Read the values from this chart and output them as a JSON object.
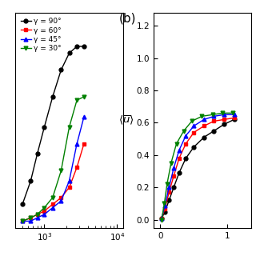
{
  "panel_b_label": "(b)",
  "legend_labels": [
    "γ = 90°",
    "γ = 60°",
    "γ = 45°",
    "γ = 30°"
  ],
  "colors": [
    "black",
    "red",
    "blue",
    "green"
  ],
  "markers": [
    "o",
    "s",
    "^",
    "v"
  ],
  "left_xlim": [
    400,
    12000
  ],
  "left_ylim": [
    0.08,
    0.72
  ],
  "left_yticks": [],
  "right_xlim": [
    -0.1,
    1.35
  ],
  "right_ylim": [
    -0.05,
    1.28
  ],
  "right_yticks": [
    0,
    0.2,
    0.4,
    0.6,
    0.8,
    1.0,
    1.2
  ],
  "right_xticks": [
    0,
    1
  ],
  "left_data": {
    "black": {
      "x": [
        500,
        650,
        800,
        1000,
        1300,
        1700,
        2200,
        2800,
        3500
      ],
      "y": [
        0.15,
        0.22,
        0.3,
        0.38,
        0.47,
        0.55,
        0.6,
        0.62,
        0.62
      ]
    },
    "red": {
      "x": [
        500,
        650,
        800,
        1000,
        1300,
        1700,
        2200,
        2800,
        3500
      ],
      "y": [
        0.1,
        0.11,
        0.12,
        0.13,
        0.15,
        0.17,
        0.2,
        0.26,
        0.33
      ]
    },
    "blue": {
      "x": [
        500,
        650,
        800,
        1000,
        1300,
        1700,
        2200,
        2800,
        3500
      ],
      "y": [
        0.1,
        0.1,
        0.11,
        0.12,
        0.14,
        0.16,
        0.22,
        0.33,
        0.41
      ]
    },
    "green": {
      "x": [
        500,
        650,
        800,
        1000,
        1300,
        1700,
        2200,
        2800,
        3500
      ],
      "y": [
        0.1,
        0.11,
        0.12,
        0.14,
        0.17,
        0.25,
        0.38,
        0.46,
        0.47
      ]
    }
  },
  "right_data": {
    "black": {
      "x": [
        0.02,
        0.07,
        0.13,
        0.2,
        0.28,
        0.38,
        0.5,
        0.65,
        0.8,
        0.95,
        1.1
      ],
      "y": [
        0.01,
        0.05,
        0.12,
        0.2,
        0.29,
        0.38,
        0.45,
        0.51,
        0.55,
        0.59,
        0.62
      ]
    },
    "red": {
      "x": [
        0.02,
        0.07,
        0.13,
        0.2,
        0.28,
        0.38,
        0.5,
        0.65,
        0.8,
        0.95,
        1.1
      ],
      "y": [
        0.01,
        0.07,
        0.17,
        0.27,
        0.38,
        0.47,
        0.54,
        0.58,
        0.61,
        0.62,
        0.63
      ]
    },
    "blue": {
      "x": [
        0.02,
        0.07,
        0.13,
        0.2,
        0.28,
        0.38,
        0.5,
        0.65,
        0.8,
        0.95,
        1.1
      ],
      "y": [
        0.01,
        0.09,
        0.2,
        0.32,
        0.43,
        0.52,
        0.58,
        0.62,
        0.64,
        0.65,
        0.65
      ]
    },
    "green": {
      "x": [
        0.02,
        0.06,
        0.1,
        0.16,
        0.24,
        0.35,
        0.47,
        0.62,
        0.78,
        0.93,
        1.08
      ],
      "y": [
        0.0,
        0.1,
        0.22,
        0.35,
        0.47,
        0.55,
        0.61,
        0.64,
        0.65,
        0.66,
        0.66
      ]
    }
  }
}
